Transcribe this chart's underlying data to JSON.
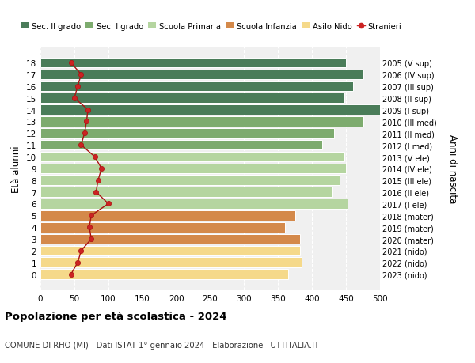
{
  "ages": [
    18,
    17,
    16,
    15,
    14,
    13,
    12,
    11,
    10,
    9,
    8,
    7,
    6,
    5,
    4,
    3,
    2,
    1,
    0
  ],
  "right_labels": [
    "2005 (V sup)",
    "2006 (IV sup)",
    "2007 (III sup)",
    "2008 (II sup)",
    "2009 (I sup)",
    "2010 (III med)",
    "2011 (II med)",
    "2012 (I med)",
    "2013 (V ele)",
    "2014 (IV ele)",
    "2015 (III ele)",
    "2016 (II ele)",
    "2017 (I ele)",
    "2018 (mater)",
    "2019 (mater)",
    "2020 (mater)",
    "2021 (nido)",
    "2022 (nido)",
    "2023 (nido)"
  ],
  "bar_values": [
    450,
    475,
    460,
    448,
    500,
    475,
    432,
    415,
    448,
    450,
    440,
    430,
    452,
    375,
    360,
    382,
    382,
    385,
    365
  ],
  "bar_colors": [
    "#4a7c59",
    "#4a7c59",
    "#4a7c59",
    "#4a7c59",
    "#4a7c59",
    "#7dab6e",
    "#7dab6e",
    "#7dab6e",
    "#b5d5a0",
    "#b5d5a0",
    "#b5d5a0",
    "#b5d5a0",
    "#b5d5a0",
    "#d4894a",
    "#d4894a",
    "#d4894a",
    "#f5d98a",
    "#f5d98a",
    "#f5d98a"
  ],
  "stranieri_values": [
    45,
    60,
    55,
    50,
    70,
    68,
    65,
    60,
    80,
    90,
    85,
    82,
    100,
    75,
    72,
    75,
    60,
    55,
    45
  ],
  "legend_labels": [
    "Sec. II grado",
    "Sec. I grado",
    "Scuola Primaria",
    "Scuola Infanzia",
    "Asilo Nido",
    "Stranieri"
  ],
  "legend_colors": [
    "#4a7c59",
    "#7dab6e",
    "#b5d5a0",
    "#d4894a",
    "#f5d98a",
    "#cc2222"
  ],
  "ylabel": "Età alunni",
  "right_ylabel": "Anni di nascita",
  "title": "Popolazione per età scolastica - 2024",
  "subtitle": "COMUNE DI RHO (MI) - Dati ISTAT 1° gennaio 2024 - Elaborazione TUTTITALIA.IT",
  "xlim": [
    0,
    500
  ],
  "xticks": [
    0,
    50,
    100,
    150,
    200,
    250,
    300,
    350,
    400,
    450,
    500
  ],
  "background_color": "#ffffff",
  "plot_bg_color": "#f0f0f0"
}
